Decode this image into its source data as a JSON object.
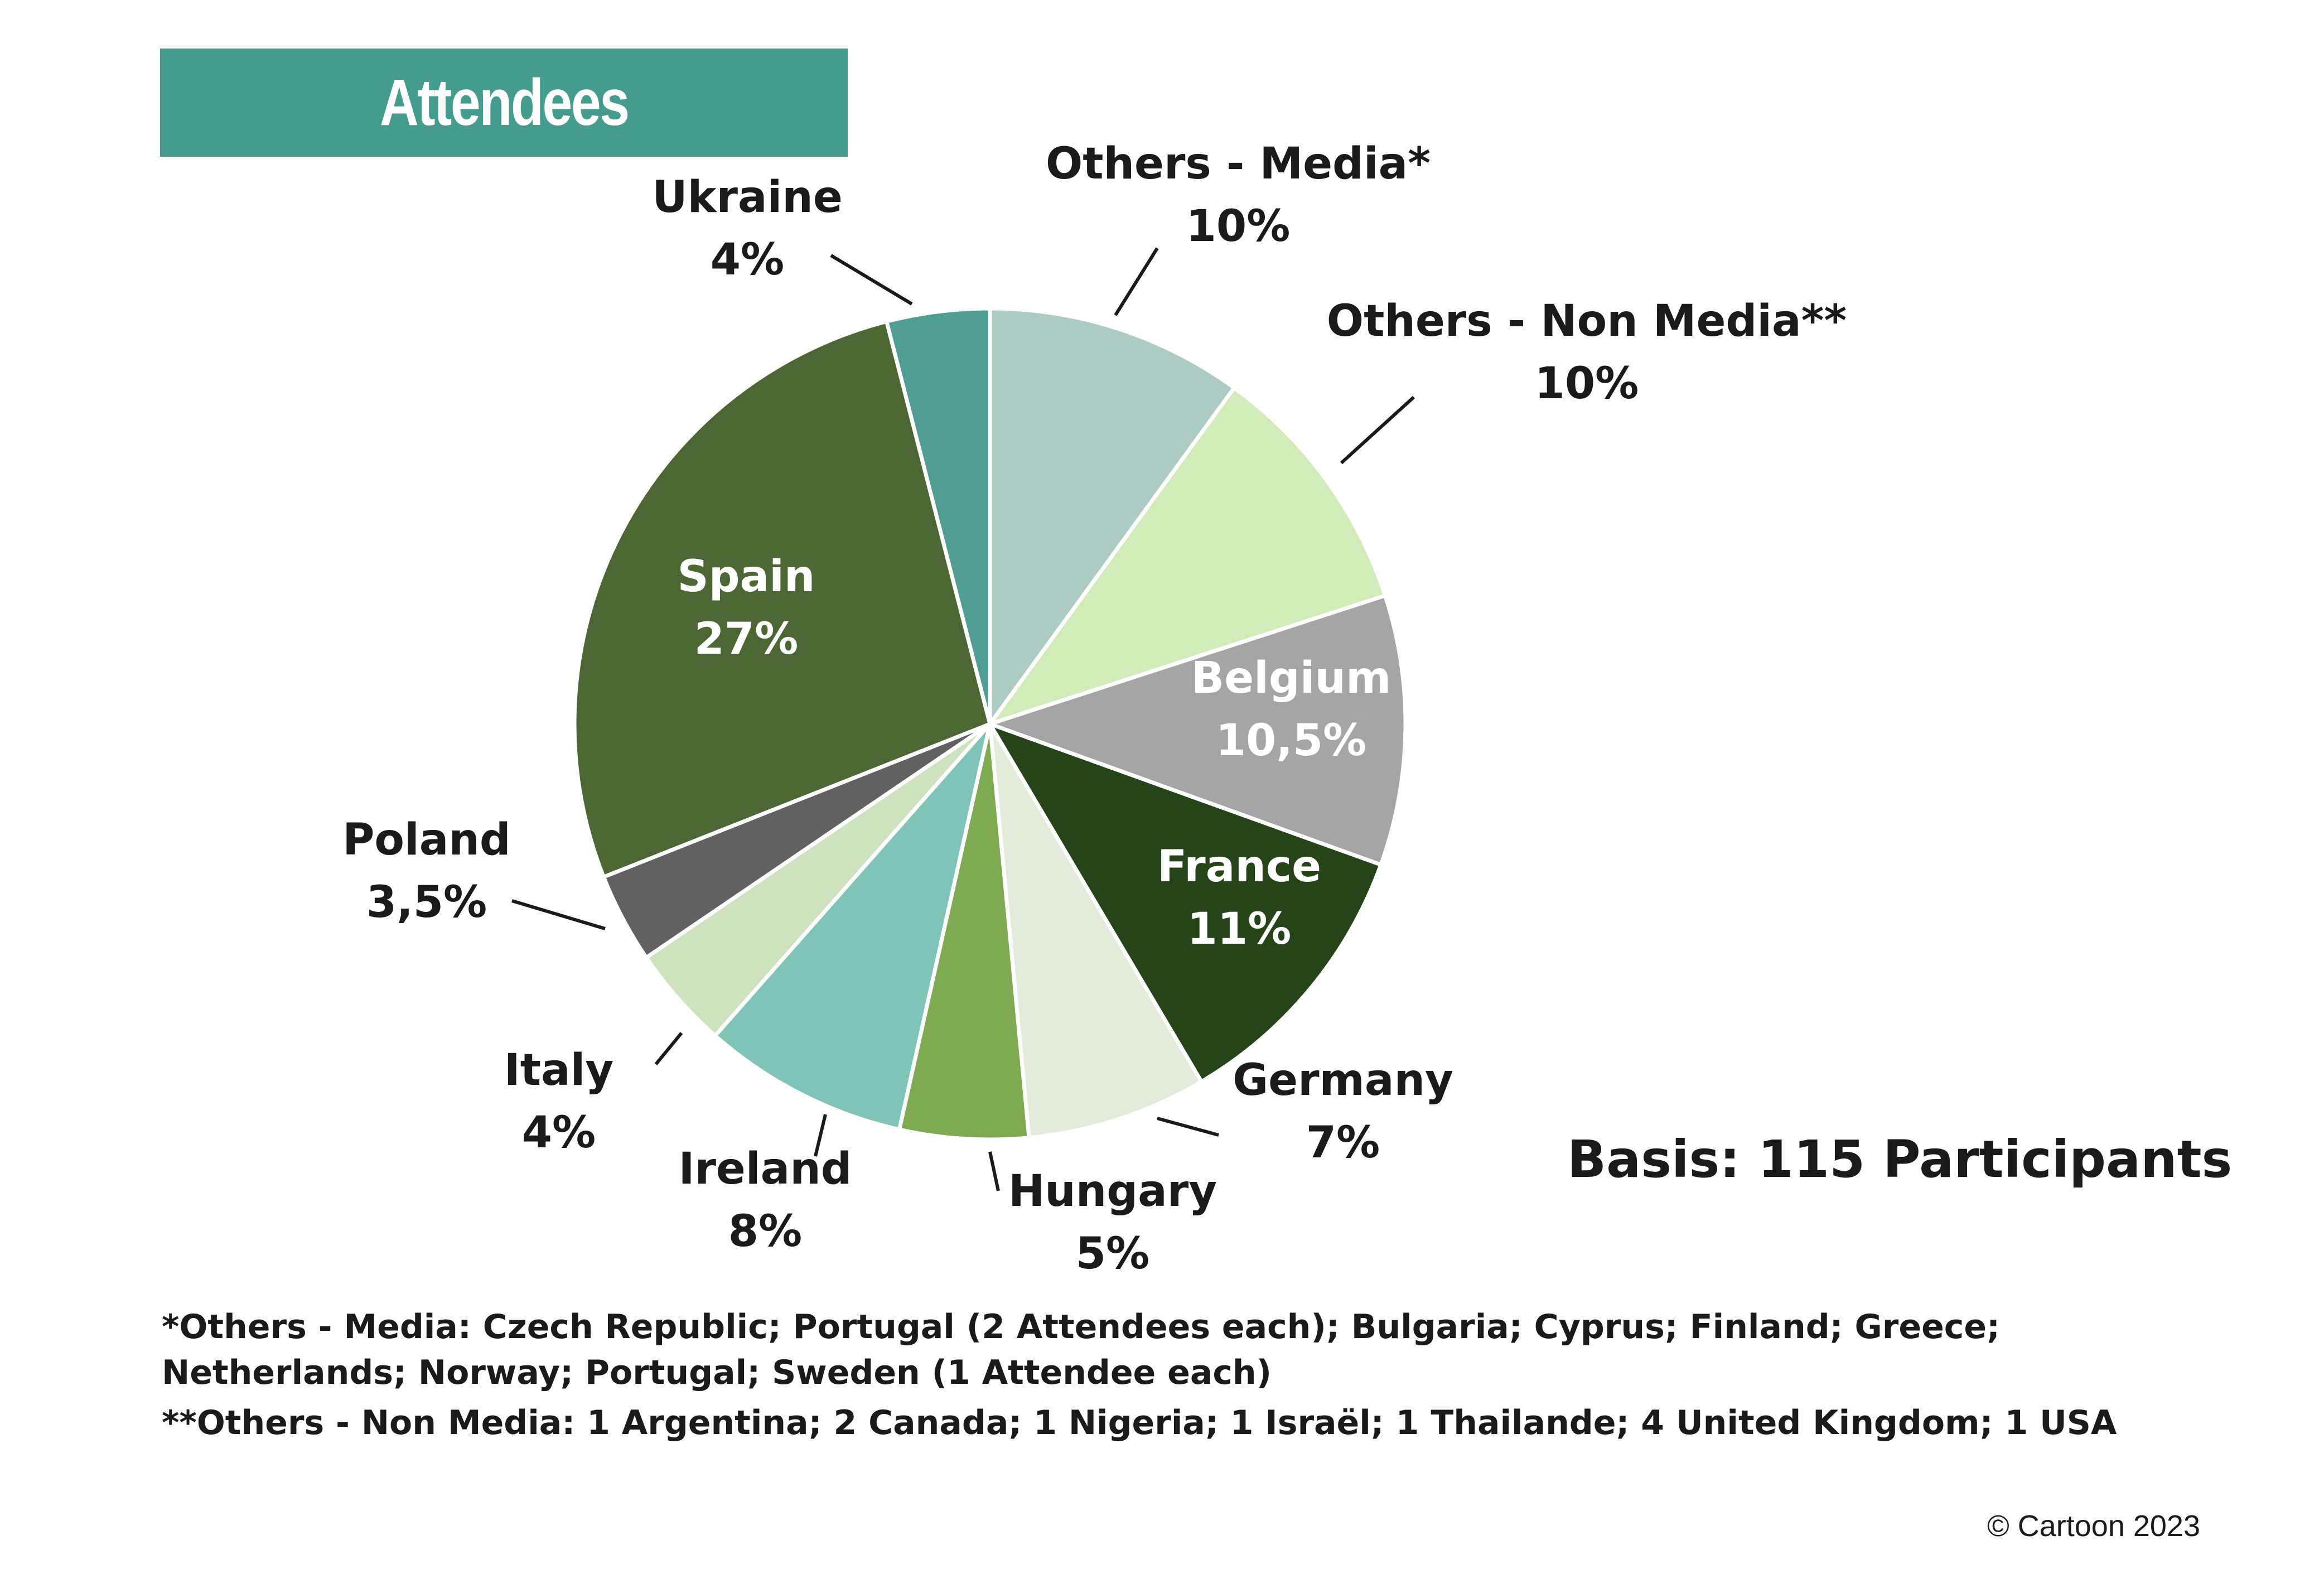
{
  "header": {
    "title": "Attendees"
  },
  "chart_data": {
    "type": "pie",
    "title": "Attendees",
    "slices": [
      {
        "label": "Others - Media*",
        "value": 10,
        "display": "10%",
        "color": "#abcbc3"
      },
      {
        "label": "Others - Non Media**",
        "value": 10,
        "display": "10%",
        "color": "#d2ecb9"
      },
      {
        "label": "Belgium",
        "value": 10.5,
        "display": "10,5%",
        "color": "#a5a5a5"
      },
      {
        "label": "France",
        "value": 11,
        "display": "11%",
        "color": "#254519"
      },
      {
        "label": "Germany",
        "value": 7,
        "display": "7%",
        "color": "#e3ecdb"
      },
      {
        "label": "Hungary",
        "value": 5,
        "display": "5%",
        "color": "#7eab52"
      },
      {
        "label": "Ireland",
        "value": 8,
        "display": "8%",
        "color": "#80c4b8"
      },
      {
        "label": "Italy",
        "value": 4,
        "display": "4%",
        "color": "#cde2bd"
      },
      {
        "label": "Poland",
        "value": 3.5,
        "display": "3,5%",
        "color": "#616161"
      },
      {
        "label": "Spain",
        "value": 27,
        "display": "27%",
        "color": "#4c6734"
      },
      {
        "label": "Ukraine",
        "value": 4,
        "display": "4%",
        "color": "#509d92"
      }
    ]
  },
  "basis": "Basis: 115 Participants",
  "footnotes": [
    "*Others - Media: Czech Republic; Portugal (2 Attendees each); Bulgaria; Cyprus; Finland; Greece; Netherlands; Norway; Portugal; Sweden (1 Attendee each)",
    "**Others - Non Media: 1 Argentina; 2 Canada; 1 Nigeria; 1 Israël; 1 Thailande; 4 United Kingdom; 1 USA"
  ],
  "copyright": "© Cartoon 2023",
  "colors": {
    "title_bar": "#449c8c"
  }
}
